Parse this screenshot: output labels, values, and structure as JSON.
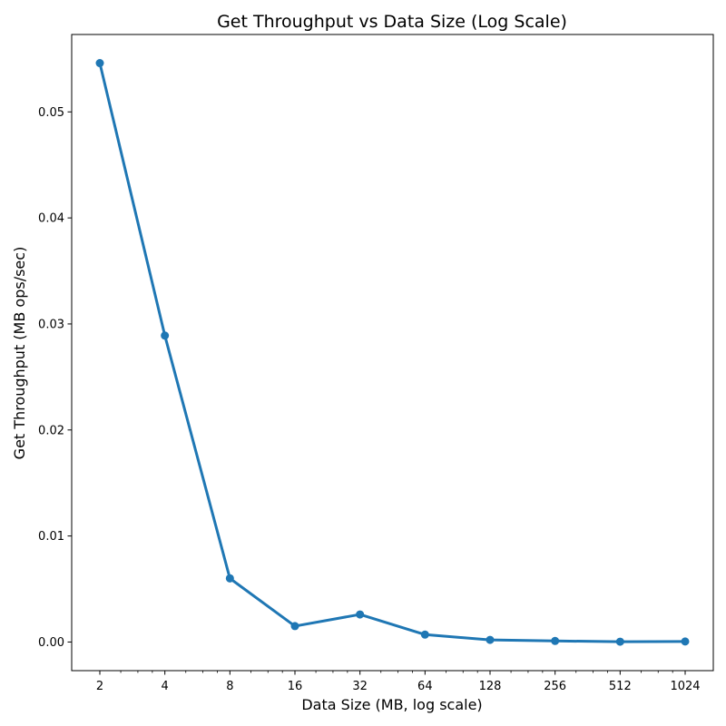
{
  "chart_data": {
    "type": "line",
    "title": "Get Throughput vs Data Size (Log Scale)",
    "xlabel": "Data Size (MB, log scale)",
    "ylabel": "Get Throughput (MB ops/sec)",
    "x_scale": "log2",
    "x_ticks": [
      2,
      4,
      8,
      16,
      32,
      64,
      128,
      256,
      512,
      1024
    ],
    "x_tick_labels": [
      "2",
      "4",
      "8",
      "16",
      "32",
      "64",
      "128",
      "256",
      "512",
      "1024"
    ],
    "y_ticks": [
      0.0,
      0.01,
      0.02,
      0.03,
      0.04,
      0.05
    ],
    "y_tick_labels": [
      "0.00",
      "0.01",
      "0.02",
      "0.03",
      "0.04",
      "0.05"
    ],
    "ylim": [
      -0.0027,
      0.0573
    ],
    "grid": false,
    "series": [
      {
        "color": "#1f77b4",
        "marker": "circle",
        "x": [
          2,
          4,
          8,
          16,
          32,
          64,
          128,
          256,
          512,
          1024
        ],
        "y": [
          0.0546,
          0.0289,
          0.006,
          0.0015,
          0.0026,
          0.0007,
          0.0002,
          0.0001,
          3e-05,
          5e-05
        ]
      }
    ]
  }
}
